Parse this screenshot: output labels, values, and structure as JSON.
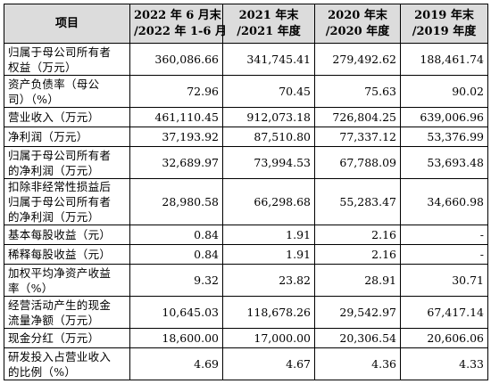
{
  "table": {
    "headers": [
      {
        "lines": [
          "项目"
        ]
      },
      {
        "lines": [
          "2022 年 6 月末",
          "/2022 年 1-6 月"
        ]
      },
      {
        "lines": [
          "2021 年末",
          "/2021 年度"
        ]
      },
      {
        "lines": [
          "2020 年末",
          "/2020 年度"
        ]
      },
      {
        "lines": [
          "2019 年末",
          "/2019 年度"
        ]
      }
    ],
    "rows": [
      {
        "label_lines": [
          "归属于母公司所有者",
          "权益（万元）"
        ],
        "values": [
          "360,086.66",
          "341,745.41",
          "279,492.62",
          "188,461.74"
        ]
      },
      {
        "label_lines": [
          "资产负债率（母公",
          "司）（%）"
        ],
        "values": [
          "72.96",
          "70.45",
          "75.63",
          "90.02"
        ]
      },
      {
        "label_lines": [
          "营业收入（万元）"
        ],
        "values": [
          "461,110.45",
          "912,073.18",
          "726,804.25",
          "639,006.96"
        ]
      },
      {
        "label_lines": [
          "净利润（万元）"
        ],
        "values": [
          "37,193.92",
          "87,510.80",
          "77,337.12",
          "53,376.99"
        ]
      },
      {
        "label_lines": [
          "归属于母公司所有者",
          "的净利润（万元）"
        ],
        "values": [
          "32,689.97",
          "73,994.53",
          "67,788.09",
          "53,693.48"
        ]
      },
      {
        "label_lines": [
          "扣除非经常性损益后",
          "归属于母公司所有者",
          "的净利润（万元）"
        ],
        "values": [
          "28,980.58",
          "66,298.68",
          "55,283.47",
          "34,660.98"
        ]
      },
      {
        "label_lines": [
          "基本每股收益（元）"
        ],
        "values": [
          "0.84",
          "1.91",
          "2.16",
          "-"
        ]
      },
      {
        "label_lines": [
          "稀释每股收益（元）"
        ],
        "values": [
          "0.84",
          "1.91",
          "2.16",
          "-"
        ]
      },
      {
        "label_lines": [
          "加权平均净资产收益",
          "率（%）"
        ],
        "values": [
          "9.32",
          "23.82",
          "28.91",
          "30.71"
        ]
      },
      {
        "label_lines": [
          "经营活动产生的现金",
          "流量净额（万元）"
        ],
        "values": [
          "10,645.03",
          "118,678.26",
          "29,542.97",
          "67,417.14"
        ]
      },
      {
        "label_lines": [
          "现金分红（万元）"
        ],
        "values": [
          "18,600.00",
          "17,000.00",
          "20,306.54",
          "20,606.06"
        ]
      },
      {
        "label_lines": [
          "研发投入占营业收入",
          "的比例（%）"
        ],
        "values": [
          "4.69",
          "4.67",
          "4.36",
          "4.33"
        ]
      }
    ]
  }
}
